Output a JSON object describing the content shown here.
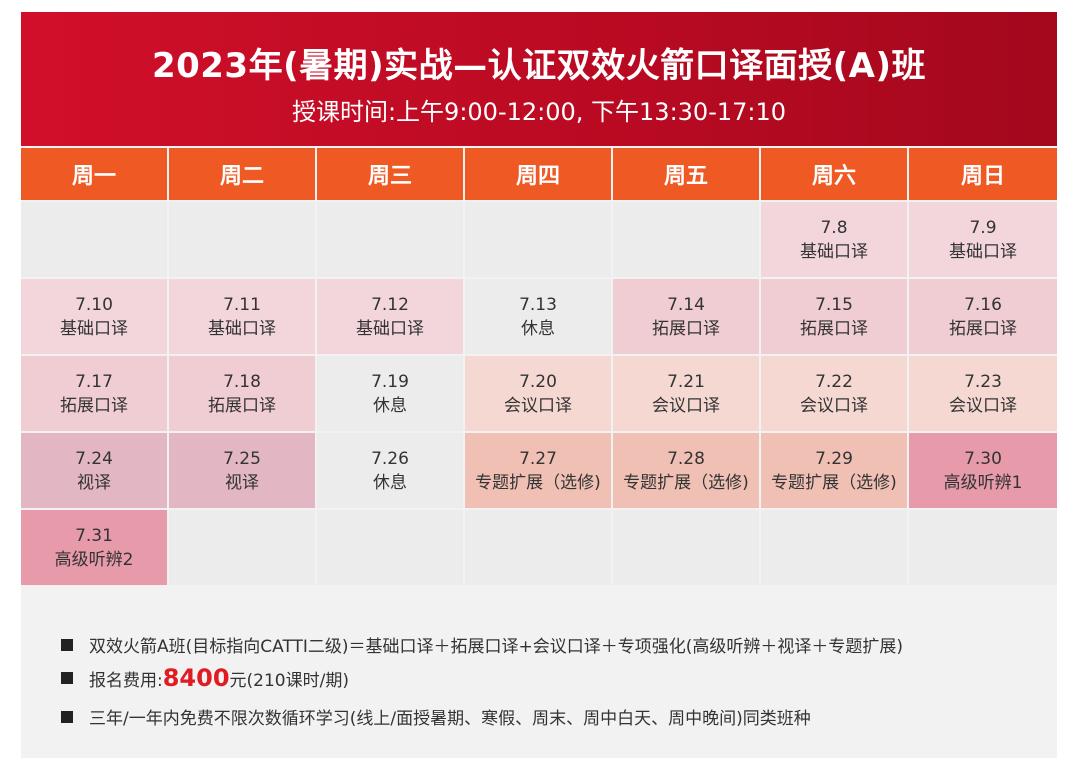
{
  "header": {
    "title": "2023年(暑期)实战—认证双效火箭口译面授(A)班",
    "subtitle": "授课时间:上午9:00-12:00, 下午13:30-17:10"
  },
  "weekdays": [
    "周一",
    "周二",
    "周三",
    "周四",
    "周五",
    "周六",
    "周日"
  ],
  "rows": [
    [
      {
        "date": "",
        "label": "",
        "type": "empty"
      },
      {
        "date": "",
        "label": "",
        "type": "empty"
      },
      {
        "date": "",
        "label": "",
        "type": "empty"
      },
      {
        "date": "",
        "label": "",
        "type": "empty"
      },
      {
        "date": "",
        "label": "",
        "type": "empty"
      },
      {
        "date": "7.8",
        "label": "基础口译",
        "type": "basic"
      },
      {
        "date": "7.9",
        "label": "基础口译",
        "type": "basic"
      }
    ],
    [
      {
        "date": "7.10",
        "label": "基础口译",
        "type": "basic"
      },
      {
        "date": "7.11",
        "label": "基础口译",
        "type": "basic"
      },
      {
        "date": "7.12",
        "label": "基础口译",
        "type": "basic"
      },
      {
        "date": "7.13",
        "label": "休息",
        "type": "rest"
      },
      {
        "date": "7.14",
        "label": "拓展口译",
        "type": "expand"
      },
      {
        "date": "7.15",
        "label": "拓展口译",
        "type": "expand"
      },
      {
        "date": "7.16",
        "label": "拓展口译",
        "type": "expand"
      }
    ],
    [
      {
        "date": "7.17",
        "label": "拓展口译",
        "type": "expand"
      },
      {
        "date": "7.18",
        "label": "拓展口译",
        "type": "expand"
      },
      {
        "date": "7.19",
        "label": "休息",
        "type": "rest"
      },
      {
        "date": "7.20",
        "label": "会议口译",
        "type": "meet"
      },
      {
        "date": "7.21",
        "label": "会议口译",
        "type": "meet"
      },
      {
        "date": "7.22",
        "label": "会议口译",
        "type": "meet"
      },
      {
        "date": "7.23",
        "label": "会议口译",
        "type": "meet"
      }
    ],
    [
      {
        "date": "7.24",
        "label": "视译",
        "type": "sight"
      },
      {
        "date": "7.25",
        "label": "视译",
        "type": "sight"
      },
      {
        "date": "7.26",
        "label": "休息",
        "type": "rest"
      },
      {
        "date": "7.27",
        "label": "专题扩展（选修)",
        "type": "topic"
      },
      {
        "date": "7.28",
        "label": "专题扩展（选修)",
        "type": "topic"
      },
      {
        "date": "7.29",
        "label": "专题扩展（选修)",
        "type": "topic"
      },
      {
        "date": "7.30",
        "label": "高级听辨1",
        "type": "adv"
      }
    ],
    [
      {
        "date": "7.31",
        "label": "高级听辨2",
        "type": "adv"
      },
      {
        "date": "",
        "label": "",
        "type": "empty"
      },
      {
        "date": "",
        "label": "",
        "type": "empty"
      },
      {
        "date": "",
        "label": "",
        "type": "empty"
      },
      {
        "date": "",
        "label": "",
        "type": "empty"
      },
      {
        "date": "",
        "label": "",
        "type": "empty"
      },
      {
        "date": "",
        "label": "",
        "type": "empty"
      }
    ]
  ],
  "notes": {
    "line1": "双效火箭A班(目标指向CATTI二级)＝基础口译＋拓展口译+会议口译＋专项强化(高级听辨＋视译＋专题扩展)",
    "line2_prefix": "报名费用:",
    "line2_price": "8400",
    "line2_suffix": "元(210课时/期)",
    "line3": "三年/一年内免费不限次数循环学习(线上/面授暑期、寒假、周末、周中白天、周中晚间)同类班种"
  },
  "colors": {
    "header_red": "#c50d26",
    "weekday_orange": "#ef5a24",
    "price_red": "#e01b22",
    "basic": "#f2d6dc",
    "expand": "#efcdd2",
    "meet": "#f5d8d2",
    "sight": "#e3b6c3",
    "topic": "#f0c0b5",
    "adv": "#e79aa9",
    "empty": "#ececec"
  }
}
